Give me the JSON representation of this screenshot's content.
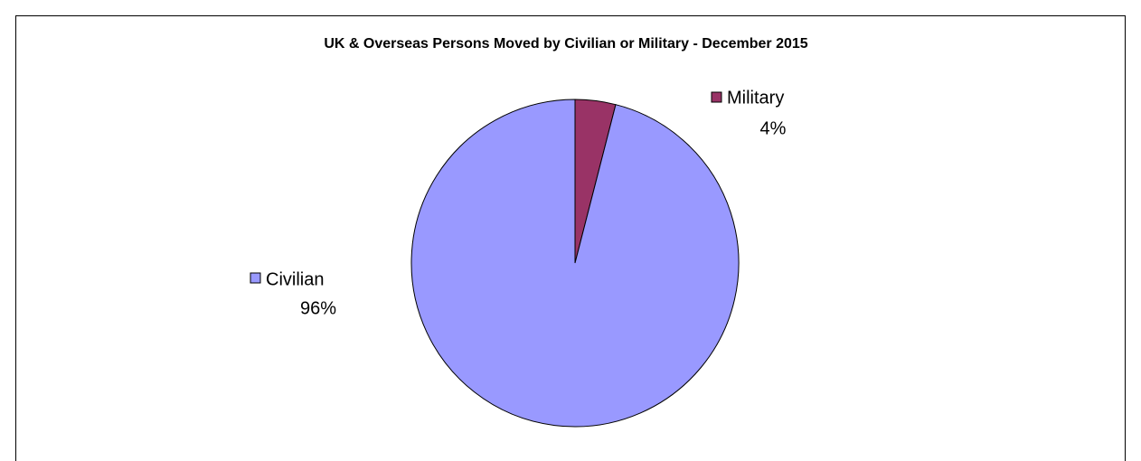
{
  "chart_data": {
    "type": "pie",
    "title": "UK & Overseas Persons Moved by Civilian or Military - December 2015",
    "categories": [
      "Military",
      "Civilian"
    ],
    "values": [
      4,
      96
    ],
    "value_labels": [
      "4%",
      "96%"
    ],
    "colors": [
      "#993366",
      "#9999ff"
    ]
  }
}
